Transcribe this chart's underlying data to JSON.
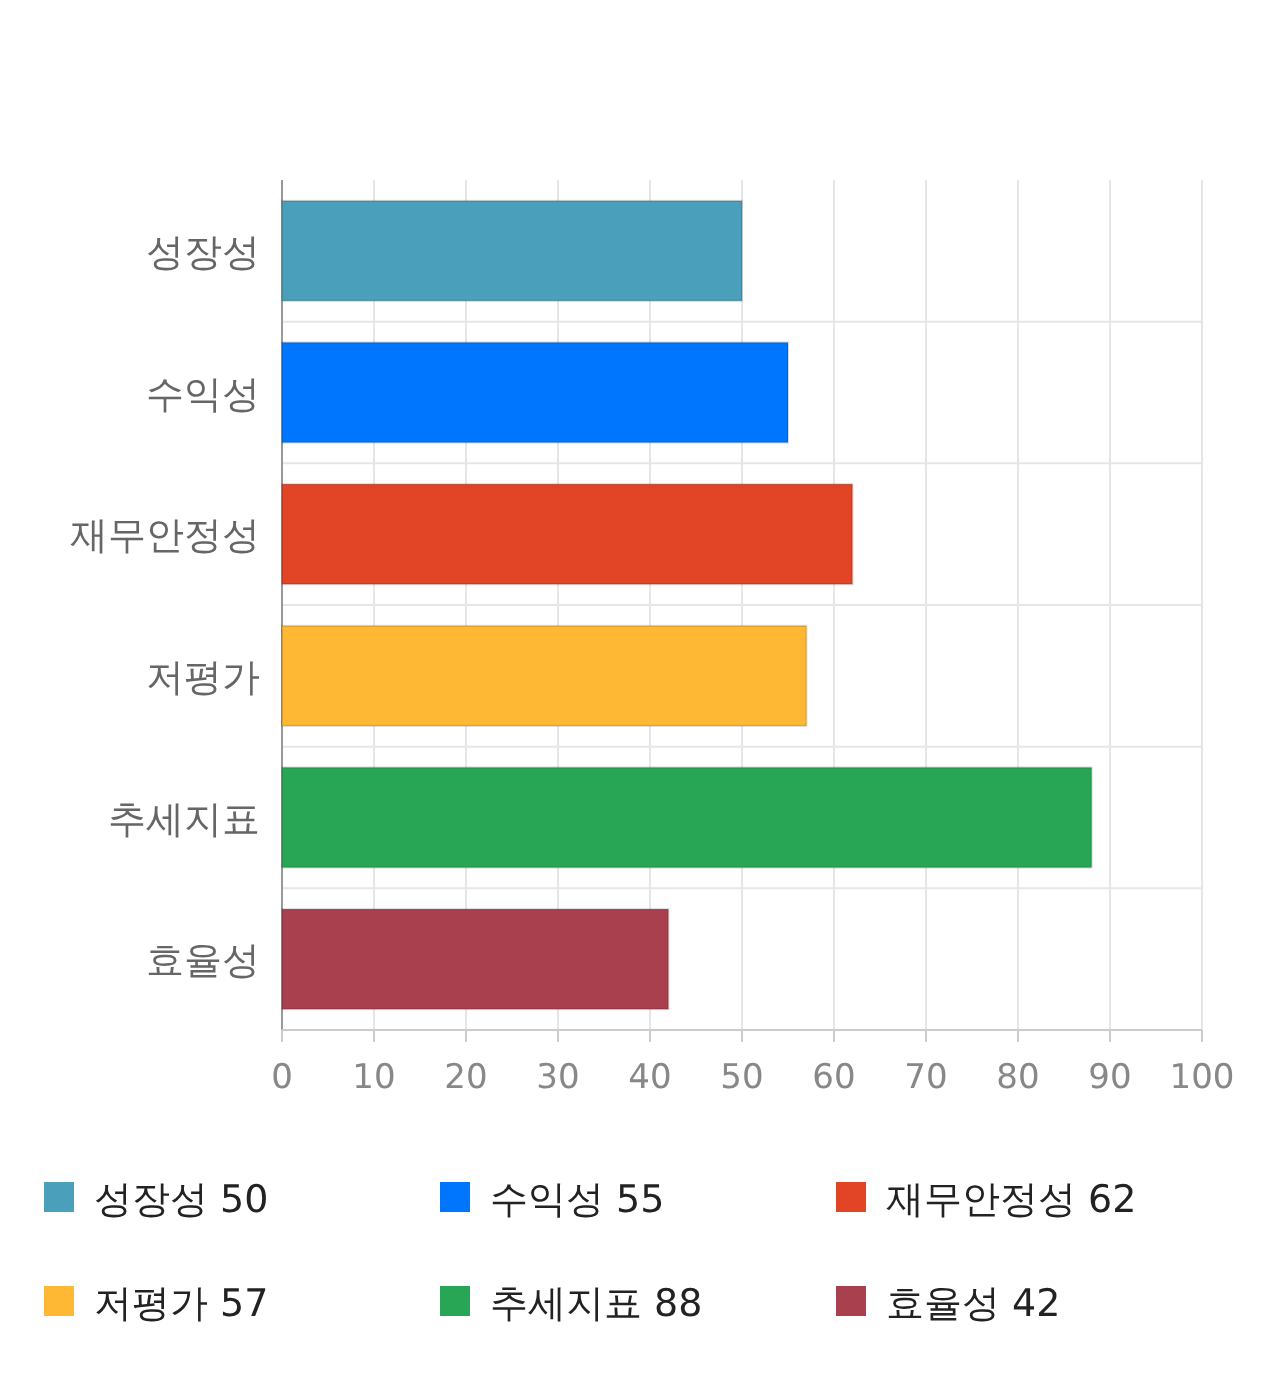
{
  "chart_data": {
    "type": "bar",
    "orientation": "horizontal",
    "categories": [
      "성장성",
      "수익성",
      "재무안정성",
      "저평가",
      "추세지표",
      "효율성"
    ],
    "series": [
      {
        "name": "성장성 50",
        "color": "#4aa0ba",
        "values": [
          50,
          null,
          null,
          null,
          null,
          null
        ]
      },
      {
        "name": "수익성 55",
        "color": "#0076ff",
        "values": [
          null,
          55,
          null,
          null,
          null,
          null
        ]
      },
      {
        "name": "재무안정성 62",
        "color": "#e24526",
        "values": [
          null,
          null,
          62,
          null,
          null,
          null
        ]
      },
      {
        "name": "저평가 57",
        "color": "#ffb833",
        "values": [
          null,
          null,
          null,
          57,
          null,
          null
        ]
      },
      {
        "name": "추세지표 88",
        "color": "#28a655",
        "values": [
          null,
          null,
          null,
          null,
          88,
          null
        ]
      },
      {
        "name": "효율성 42",
        "color": "#a8404e",
        "values": [
          null,
          null,
          null,
          null,
          null,
          42
        ]
      }
    ],
    "xlim": [
      0,
      100
    ],
    "xticks": [
      0,
      10,
      20,
      30,
      40,
      50,
      60,
      70,
      80,
      90,
      100
    ],
    "grid": true,
    "legend": "bottom"
  }
}
